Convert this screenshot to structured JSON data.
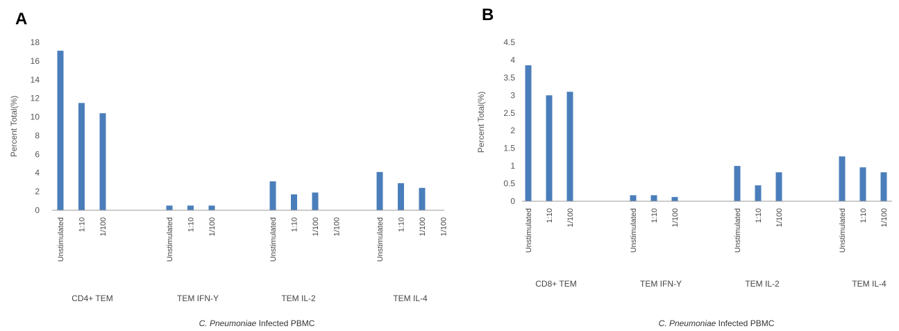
{
  "chart_data": [
    {
      "panel": "A",
      "type": "bar",
      "ylabel": "Percent Total(%)",
      "xlabel_italic": "C. Pneumoniae",
      "xlabel_rest": " Infected PBMC",
      "ylim": [
        0,
        18
      ],
      "yticks": [
        0,
        2,
        4,
        6,
        8,
        10,
        12,
        14,
        16,
        18
      ],
      "grid": false,
      "color": "#4a7ebb",
      "groups": [
        {
          "name": "CD4+ TEM",
          "categories": [
            "Unstimulated",
            "1:10",
            "1/100"
          ],
          "values": [
            17.1,
            11.5,
            10.4
          ]
        },
        {
          "name": "TEM IFN-Y",
          "categories": [
            "Unstimulated",
            "1:10",
            "1/100"
          ],
          "values": [
            0.5,
            0.5,
            0.5
          ]
        },
        {
          "name": "TEM IL-2",
          "categories": [
            "Unstimulated",
            "1:10",
            "1/100"
          ],
          "values": [
            3.1,
            1.7,
            1.9
          ]
        },
        {
          "name": "TEM IL-4",
          "categories": [
            "Unstimulated",
            "1:10",
            "1/100"
          ],
          "values": [
            4.1,
            2.9,
            2.4
          ]
        }
      ]
    },
    {
      "panel": "B",
      "type": "bar",
      "ylabel": "Percent Total(%)",
      "xlabel_italic": "C. Pneumoniae",
      "xlabel_rest": " Infected PBMC",
      "ylim": [
        0,
        4.5
      ],
      "yticks": [
        0,
        0.5,
        1,
        1.5,
        2,
        2.5,
        3,
        3.5,
        4,
        4.5
      ],
      "grid": false,
      "color": "#4a7ebb",
      "groups": [
        {
          "name": "CD8+ TEM",
          "categories": [
            "Unstimulated",
            "1:10",
            "1/100"
          ],
          "values": [
            3.85,
            3.0,
            3.1
          ]
        },
        {
          "name": "TEM IFN-Y",
          "categories": [
            "Unstimulated",
            "1:10",
            "1/100"
          ],
          "values": [
            0.17,
            0.17,
            0.12
          ]
        },
        {
          "name": "TEM IL-2",
          "categories": [
            "Unstimulated",
            "1:10",
            "1/100"
          ],
          "values": [
            1.0,
            0.45,
            0.82
          ]
        },
        {
          "name": "TEM IL-4",
          "categories": [
            "Unstimulated",
            "1:10",
            "1/100"
          ],
          "values": [
            1.27,
            0.96,
            0.82
          ]
        }
      ]
    }
  ],
  "panels": {
    "a_label": "A",
    "b_label": "B"
  }
}
